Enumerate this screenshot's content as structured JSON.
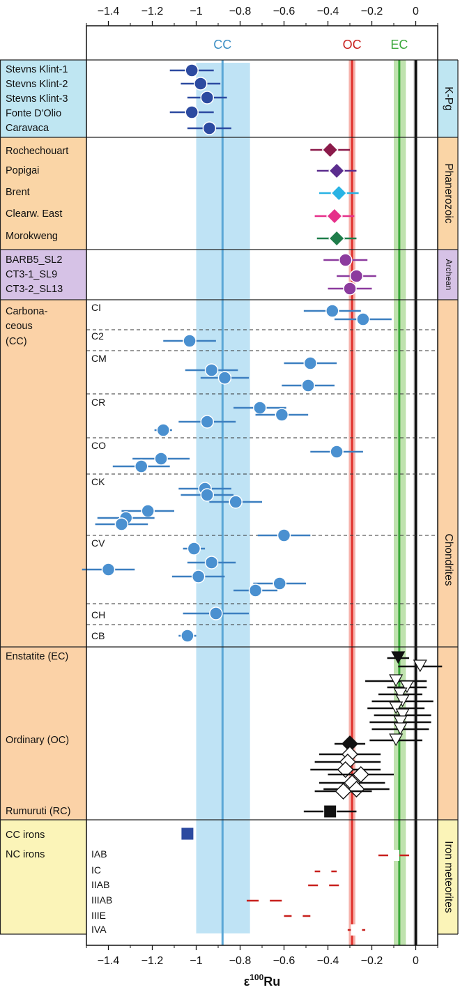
{
  "chart_data": {
    "type": "scatter",
    "xlabel_base": "ε",
    "xlabel_sup": "100",
    "xlabel_unit": "Ru",
    "xlim": [
      -1.5,
      0.1
    ],
    "xticks": [
      -1.4,
      -1.2,
      -1.0,
      -0.8,
      -0.6,
      -0.4,
      -0.2,
      0
    ],
    "xtick_labels": [
      "−1.4",
      "−1.2",
      "−1",
      "−0.8",
      "−0.6",
      "−0.4",
      "−0.2",
      "0"
    ],
    "reference_bands": [
      {
        "label": "CC",
        "center": -0.88,
        "low": -1.0,
        "high": -0.755,
        "line_color": "#5ba7d6",
        "band_color": "#bfe3f5",
        "label_color": "#3d8fc4"
      },
      {
        "label": "OC",
        "center": -0.29,
        "low": -0.305,
        "high": -0.275,
        "line_color": "#e0302c",
        "band_color": "#f6b3ac",
        "label_color": "#c8201d"
      },
      {
        "label": "EC",
        "center": -0.075,
        "low": -0.1,
        "high": -0.045,
        "line_color": "#3aa83a",
        "band_color": "#bfe2ae",
        "label_color": "#3aa83a"
      },
      {
        "label": "",
        "center": 0.0,
        "low": -0.01,
        "high": 0.01,
        "line_color": "#111111",
        "band_color": "#cfcfcf",
        "label_color": "#111111"
      }
    ],
    "right_labels": [
      {
        "text": "K-Pg",
        "color": "#bfe6f2"
      },
      {
        "text": "Phanerozoic",
        "color": "#fad5a6"
      },
      {
        "text": "Archean",
        "color": "#d6c2e6"
      },
      {
        "text": "Chondrites",
        "color": "#fbd2a7"
      },
      {
        "text": "Iron meteorites",
        "color": "#fbf4b8"
      }
    ],
    "groups": [
      {
        "label_lines": [
          "Stevns Klint-1",
          "Stevns Klint-2",
          "Stevns Klint-3",
          "Fonte D'Olio",
          "Caravaca"
        ],
        "color": "#bfe6f2"
      },
      {
        "label_lines": [
          "Rochechouart",
          "Popigai",
          "Brent",
          "Clearw. East",
          "Morokweng"
        ],
        "color": "#fad5a6"
      },
      {
        "label_lines": [
          "BARB5_SL2",
          "CT3-1_SL9",
          "CT3-2_SL13"
        ],
        "color": "#d6c2e6"
      },
      {
        "label_lines": [
          "Carbona-",
          "ceous",
          "(CC)"
        ],
        "color": "#fbd2a7"
      },
      {
        "label_lines": [
          "Enstatite (EC)",
          "Ordinary (OC)",
          "Rumuruti (RC)"
        ],
        "color": "#fbd2a7"
      },
      {
        "label_lines": [
          "CC irons",
          "NC irons"
        ],
        "color": "#fbf4b8"
      }
    ],
    "subgroups": [
      "CI",
      "C2",
      "CM",
      "CR",
      "CO",
      "CK",
      "CV",
      "CH",
      "CB",
      "IAB",
      "IC",
      "IIAB",
      "IIIAB",
      "IIIE",
      "IVA"
    ],
    "series": [
      {
        "name": "K-Pg",
        "marker": "circle",
        "fill": "#2c4aa0",
        "points": [
          {
            "label": "Stevns Klint-1",
            "x": -1.02,
            "err": 0.1
          },
          {
            "label": "Stevns Klint-2",
            "x": -0.98,
            "err": 0.09
          },
          {
            "label": "Stevns Klint-3",
            "x": -0.95,
            "err": 0.09
          },
          {
            "label": "Fonte D'Olio",
            "x": -1.02,
            "err": 0.1
          },
          {
            "label": "Caravaca",
            "x": -0.94,
            "err": 0.1
          }
        ]
      },
      {
        "name": "Phanerozoic",
        "marker": "diamond",
        "points": [
          {
            "label": "Rochechouart",
            "x": -0.39,
            "err": 0.09,
            "fill": "#8b1a4a"
          },
          {
            "label": "Popigai",
            "x": -0.36,
            "err": 0.09,
            "fill": "#5b2d8e"
          },
          {
            "label": "Brent",
            "x": -0.35,
            "err": 0.09,
            "fill": "#29b3e4"
          },
          {
            "label": "Clearw. East",
            "x": -0.37,
            "err": 0.09,
            "fill": "#e6308a"
          },
          {
            "label": "Morokweng",
            "x": -0.36,
            "err": 0.09,
            "fill": "#1f7d4a"
          }
        ]
      },
      {
        "name": "Archean",
        "marker": "circle",
        "fill": "#8c3b9e",
        "points": [
          {
            "label": "BARB5_SL2",
            "x": -0.32,
            "err": 0.1
          },
          {
            "label": "CT3-1_SL9",
            "x": -0.27,
            "err": 0.09
          },
          {
            "label": "CT3-2_SL13",
            "x": -0.3,
            "err": 0.1
          }
        ]
      },
      {
        "name": "Carbonaceous chondrites",
        "marker": "circle",
        "fill": "#4a90d0",
        "points": [
          {
            "sub": "CI",
            "x": -0.38,
            "err": 0.13
          },
          {
            "sub": "CI",
            "x": -0.24,
            "err": 0.13
          },
          {
            "sub": "C2",
            "x": -1.03,
            "err": 0.12
          },
          {
            "sub": "CM",
            "x": -0.48,
            "err": 0.12
          },
          {
            "sub": "CM",
            "x": -0.93,
            "err": 0.12
          },
          {
            "sub": "CM",
            "x": -0.87,
            "err": 0.11
          },
          {
            "sub": "CM",
            "x": -0.49,
            "err": 0.12
          },
          {
            "sub": "CR",
            "x": -0.71,
            "err": 0.12
          },
          {
            "sub": "CR",
            "x": -0.61,
            "err": 0.12
          },
          {
            "sub": "CR",
            "x": -0.95,
            "err": 0.13
          },
          {
            "sub": "CR",
            "x": -1.15,
            "err": 0.04
          },
          {
            "sub": "CO",
            "x": -0.36,
            "err": 0.12
          },
          {
            "sub": "CO",
            "x": -1.16,
            "err": 0.13
          },
          {
            "sub": "CO",
            "x": -1.25,
            "err": 0.13
          },
          {
            "sub": "CK",
            "x": -0.96,
            "err": 0.12
          },
          {
            "sub": "CK",
            "x": -0.95,
            "err": 0.12
          },
          {
            "sub": "CK",
            "x": -0.82,
            "err": 0.12
          },
          {
            "sub": "CK",
            "x": -1.22,
            "err": 0.12
          },
          {
            "sub": "CK",
            "x": -1.32,
            "err": 0.13
          },
          {
            "sub": "CK",
            "x": -1.34,
            "err": 0.12
          },
          {
            "sub": "CV",
            "x": -0.6,
            "err": 0.12
          },
          {
            "sub": "CV",
            "x": -1.01,
            "err": 0.05
          },
          {
            "sub": "CV",
            "x": -0.93,
            "err": 0.11
          },
          {
            "sub": "CV",
            "x": -1.4,
            "err": 0.12
          },
          {
            "sub": "CV",
            "x": -0.99,
            "err": 0.12
          },
          {
            "sub": "CV",
            "x": -0.62,
            "err": 0.12
          },
          {
            "sub": "CV",
            "x": -0.73,
            "err": 0.1
          },
          {
            "sub": "CH",
            "x": -0.91,
            "err": 0.15
          },
          {
            "sub": "CB",
            "x": -1.04,
            "err": 0.04
          }
        ]
      },
      {
        "name": "Enstatite (EC)",
        "marker": "triangle-down",
        "points": [
          {
            "x": -0.08,
            "err": 0.05,
            "fill": "#111111"
          },
          {
            "x": 0.02,
            "err": 0.1,
            "fill": "#ffffff"
          },
          {
            "x": -0.09,
            "err": 0.14,
            "fill": "#ffffff"
          },
          {
            "x": -0.04,
            "err": 0.09,
            "fill": "#ffffff"
          },
          {
            "x": -0.07,
            "err": 0.1,
            "fill": "#ffffff"
          },
          {
            "x": -0.06,
            "err": 0.14,
            "fill": "#ffffff"
          },
          {
            "x": -0.09,
            "err": 0.13,
            "fill": "#ffffff"
          },
          {
            "x": -0.06,
            "err": 0.13,
            "fill": "#ffffff"
          },
          {
            "x": -0.07,
            "err": 0.14,
            "fill": "#ffffff"
          },
          {
            "x": -0.07,
            "err": 0.13,
            "fill": "#ffffff"
          },
          {
            "x": -0.09,
            "err": 0.12,
            "fill": "#ffffff"
          }
        ]
      },
      {
        "name": "Ordinary (OC)",
        "marker": "diamond",
        "points": [
          {
            "x": -0.3,
            "err": 0.07,
            "fill": "#111111"
          },
          {
            "x": -0.3,
            "err": 0.14,
            "fill": "#ffffff"
          },
          {
            "x": -0.31,
            "err": 0.15,
            "fill": "#ffffff"
          },
          {
            "x": -0.32,
            "err": 0.16,
            "fill": "#ffffff"
          },
          {
            "x": -0.25,
            "err": 0.15,
            "fill": "#ffffff"
          },
          {
            "x": -0.29,
            "err": 0.15,
            "fill": "#ffffff"
          },
          {
            "x": -0.27,
            "err": 0.15,
            "fill": "#ffffff"
          },
          {
            "x": -0.33,
            "err": 0.13,
            "fill": "#ffffff"
          }
        ]
      },
      {
        "name": "Rumuruti (RC)",
        "marker": "square",
        "fill": "#111111",
        "points": [
          {
            "x": -0.39,
            "err": 0.12
          }
        ]
      },
      {
        "name": "CC irons",
        "marker": "square",
        "fill": "#2c4aa0",
        "points": [
          {
            "x": -1.04,
            "err": 0
          }
        ]
      },
      {
        "name": "NC irons",
        "marker": "square-open",
        "stroke": "#c8201d",
        "points": [
          {
            "sub": "IAB",
            "x": -0.1,
            "err": 0.07
          },
          {
            "sub": "IC",
            "x": -0.41,
            "err": 0.05
          },
          {
            "sub": "IIAB",
            "x": -0.42,
            "err": 0.07
          },
          {
            "sub": "IIIAB",
            "x": -0.69,
            "err": 0.08
          },
          {
            "sub": "IIIE",
            "x": -0.54,
            "err": 0.06
          },
          {
            "sub": "IVA",
            "x": -0.27,
            "err": 0.04
          }
        ]
      }
    ]
  }
}
